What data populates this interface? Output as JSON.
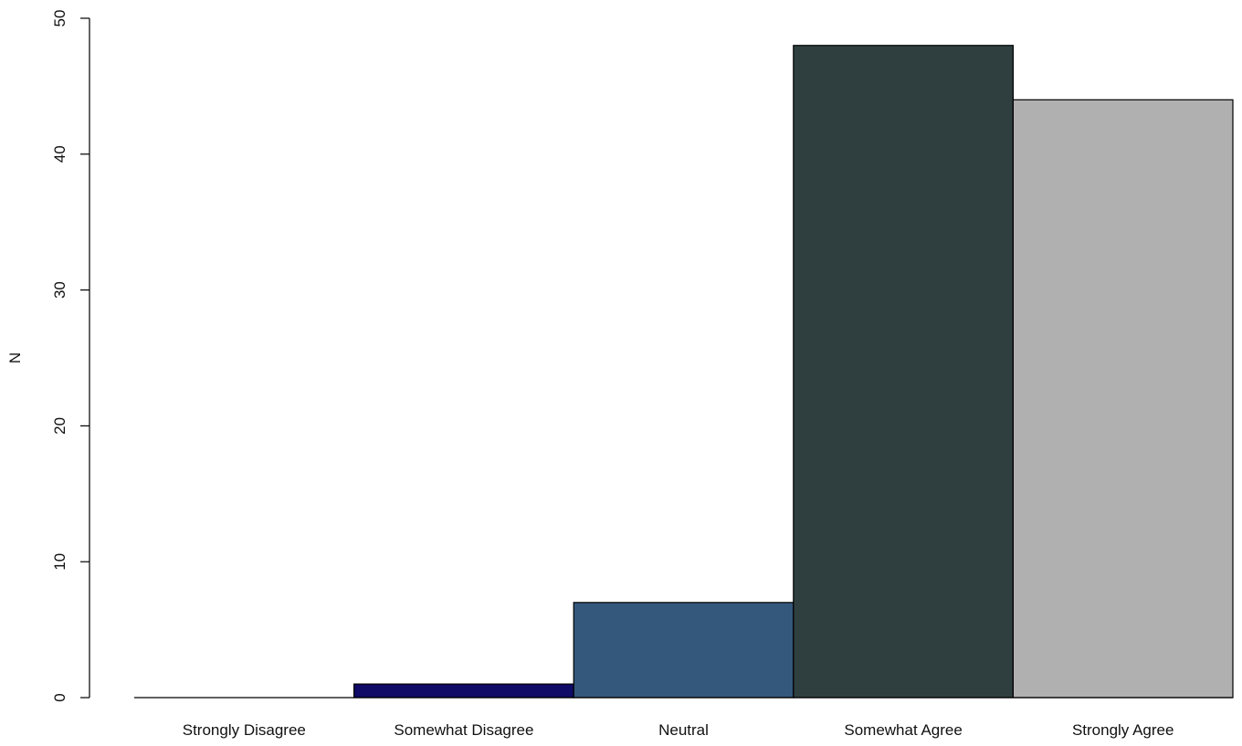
{
  "chart_data": {
    "type": "bar",
    "title": "",
    "xlabel": "",
    "ylabel": "N",
    "categories": [
      "Strongly Disagree",
      "Somewhat Disagree",
      "Neutral",
      "Somewhat Agree",
      "Strongly Agree"
    ],
    "values": [
      0,
      1,
      7,
      48,
      44
    ],
    "colors": [
      "#ffffff",
      "#0f0b66",
      "#34587c",
      "#2f3f3f",
      "#b0b0b0"
    ],
    "ylim": [
      0,
      50
    ],
    "yticks": [
      0,
      10,
      20,
      30,
      40,
      50
    ],
    "grid": false,
    "legend": "none"
  }
}
